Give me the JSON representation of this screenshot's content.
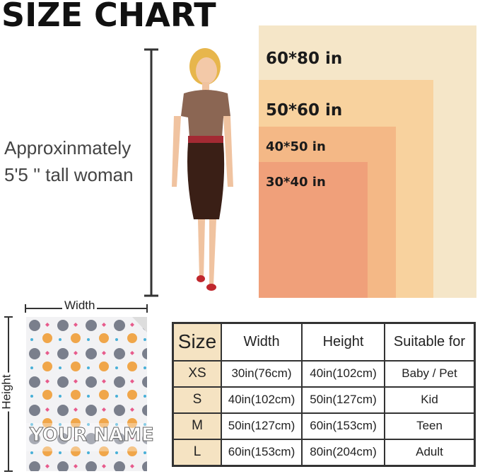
{
  "title": "SIZE CHART",
  "model_note": {
    "line1": "Approxinmately",
    "line2": "5'5 '' tall woman"
  },
  "size_boxes": [
    {
      "label": "60*80 in",
      "color": "#f5e6c8"
    },
    {
      "label": "50*60 in",
      "color": "#f8d29e"
    },
    {
      "label": "40*50 in",
      "color": "#f4b886"
    },
    {
      "label": "30*40 in",
      "color": "#f0a07a"
    }
  ],
  "blanket": {
    "width_label": "Width",
    "height_label": "Height",
    "name_text": "YOUR NAME"
  },
  "table": {
    "headers": [
      "Size",
      "Width",
      "Height",
      "Suitable for"
    ],
    "rows": [
      [
        "XS",
        "30in(76cm)",
        "40in(102cm)",
        "Baby / Pet"
      ],
      [
        "S",
        "40in(102cm)",
        "50in(127cm)",
        "Kid"
      ],
      [
        "M",
        "50in(127cm)",
        "60in(153cm)",
        "Teen"
      ],
      [
        "L",
        "60in(153cm)",
        "80in(204cm)",
        "Adult"
      ]
    ]
  }
}
